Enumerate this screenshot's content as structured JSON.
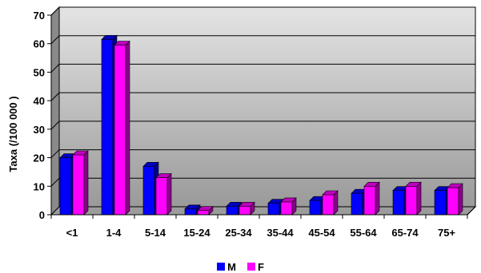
{
  "chart_data": {
    "type": "bar",
    "title": "",
    "xlabel": "",
    "ylabel": "Taxa (/100 000 )",
    "ylim": [
      0,
      70
    ],
    "yticks": [
      0,
      10,
      20,
      30,
      40,
      50,
      60,
      70
    ],
    "grid": true,
    "legend_position": "bottom",
    "categories": [
      "<1",
      "1-4",
      "5-14",
      "15-24",
      "25-34",
      "35-44",
      "45-54",
      "55-64",
      "65-74",
      "75+"
    ],
    "series": [
      {
        "name": "M",
        "color": "#0000ff",
        "values": [
          20,
          61.5,
          17,
          2,
          3,
          4,
          5,
          7.5,
          8.5,
          8.5
        ]
      },
      {
        "name": "F",
        "color": "#ff00ff",
        "values": [
          21,
          59.5,
          13,
          1.5,
          3,
          4.5,
          7,
          10,
          10,
          9.5
        ]
      }
    ]
  }
}
